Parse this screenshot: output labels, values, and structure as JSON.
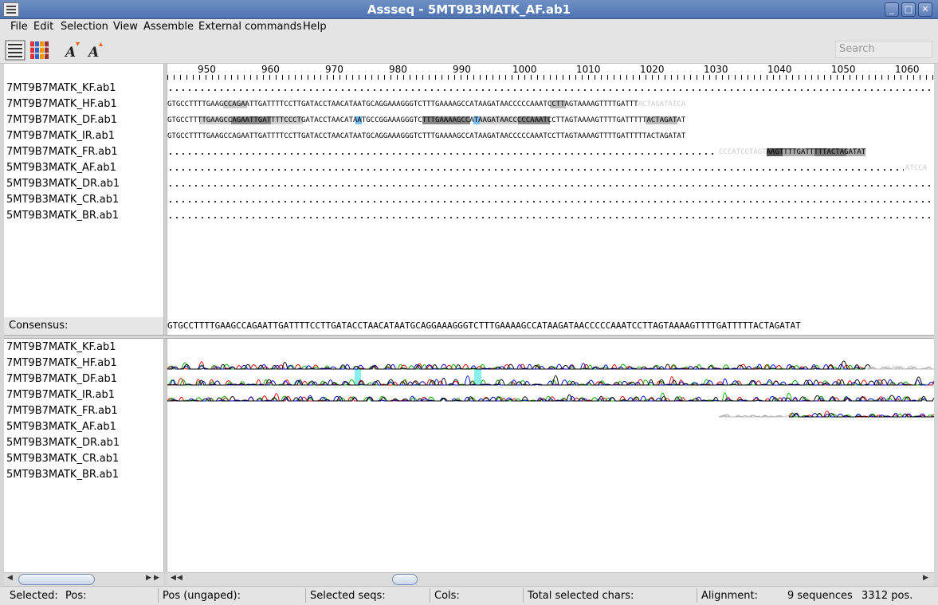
{
  "window": {
    "title": "Assseq - 5MT9B3MATK_AF.ab1"
  },
  "menu": [
    "File",
    "Edit",
    "Selection",
    "View",
    "Assemble",
    "External commands",
    "Help"
  ],
  "toolbar": {
    "search_placeholder": "Search"
  },
  "sequences": [
    "7MT9B7MATK_KF.ab1",
    "7MT9B7MATK_HF.ab1",
    "7MT9B7MATK_DF.ab1",
    "7MT9B7MATK_IR.ab1",
    "7MT9B7MATK_FR.ab1",
    "5MT9B3MATK_AF.ab1",
    "5MT9B3MATK_DR.ab1",
    "5MT9B3MATK_CR.ab1",
    "5MT9B3MATK_BR.ab1"
  ],
  "ruler": [
    "950",
    "960",
    "970",
    "980",
    "990",
    "1000",
    "1010",
    "1020",
    "1030",
    "1040",
    "1050",
    "1060"
  ],
  "alignment": {
    "hf": "GTGCCTTTTGAAGCCAGAATTGATTTTCCTTGATACCTAACATAATGCAGGAAAGGGTCTTTGAAAAGCCATAAGATAACCCCCAAATCCTTAGTAAAAGTTTTGATTT",
    "hf_tail": "ACTAGATATCA",
    "df": "GTGCCTTTTGAAGCCAGAATTGATTTTCCCTGATACCTAACATAATGCCGGAAAGGGTCTTTGAAAAGCCATAAGATAACCCCCAAATCCTTAGTAAAAGTTTTGATTTTTACTAGATAT",
    "ir": "GTGCCTTTTGAAGCCAGAATTGATTTTCCTTGATACCTAACATAATGCAGGAAAGGGTCTTTGAAAAGCCATAAGATAACCCCCAAATCCTTAGTAAAAGTTTTGATTTTTACTAGATAT",
    "fr_faint": "CCCATCGTAGT",
    "fr": "AAGTTTTGATTTTTACTAGATAT",
    "af_tail": "ATCCA"
  },
  "consensus": {
    "label": "Consensus:",
    "sequence": "GTGCCTTTTGAAGCCAGAATTGATTTTCCTTGATACCTAACATAATGCAGGAAAGGGTCTTTGAAAAGCCATAAGATAACCCCCAAATCCTTAGTAAAAGTTTTGATTTTTACTAGATAT"
  },
  "status": {
    "selected": "Selected:",
    "pos": "Pos:",
    "pos_ungaped": "Pos (ungaped):",
    "selected_seqs": "Selected seqs:",
    "cols": "Cols:",
    "total_chars": "Total selected chars:",
    "alignment": "Alignment:",
    "sequences": "9 sequences",
    "positions": "3312 pos."
  }
}
